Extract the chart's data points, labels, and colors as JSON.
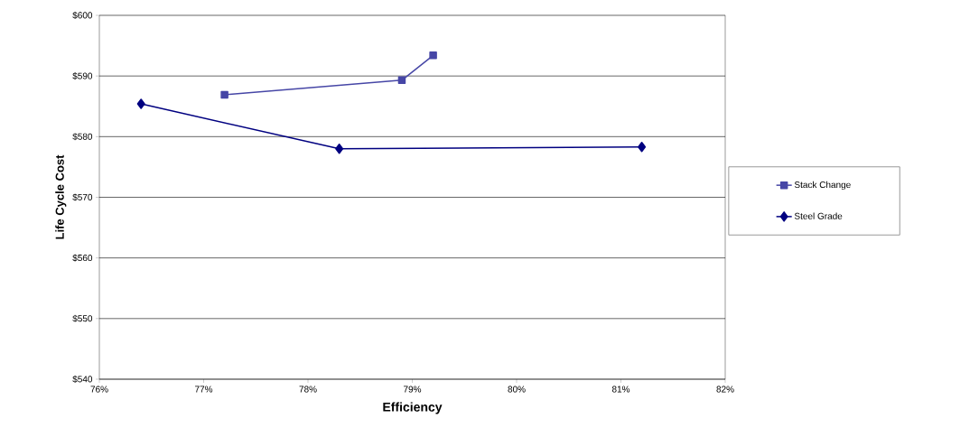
{
  "chart_data": {
    "type": "line",
    "xlabel": "Efficiency",
    "ylabel": "Life Cycle Cost",
    "xlim": [
      76,
      82
    ],
    "xticks": [
      {
        "value": 76,
        "label": "76%"
      },
      {
        "value": 77,
        "label": "77%"
      },
      {
        "value": 78,
        "label": "78%"
      },
      {
        "value": 79,
        "label": "79%"
      },
      {
        "value": 80,
        "label": "80%"
      },
      {
        "value": 81,
        "label": "81%"
      },
      {
        "value": 82,
        "label": "82%"
      }
    ],
    "ylim": [
      540,
      600
    ],
    "yticks": [
      {
        "value": 540,
        "label": "$540"
      },
      {
        "value": 550,
        "label": "$550"
      },
      {
        "value": 560,
        "label": "$560"
      },
      {
        "value": 570,
        "label": "$570"
      },
      {
        "value": 580,
        "label": "$580"
      },
      {
        "value": 590,
        "label": "$590"
      },
      {
        "value": 600,
        "label": "$600"
      }
    ],
    "grid": "y",
    "legend": "right",
    "series": [
      {
        "name": "Stack Change",
        "color": "#4646a6",
        "marker": "square",
        "x": [
          77.2,
          78.9,
          79.2
        ],
        "values": [
          586.9,
          589.3,
          593.4
        ]
      },
      {
        "name": "Steel Grade",
        "color": "#000080",
        "marker": "diamond",
        "x": [
          76.4,
          78.3,
          81.2
        ],
        "values": [
          585.4,
          578.0,
          578.3
        ]
      }
    ]
  }
}
